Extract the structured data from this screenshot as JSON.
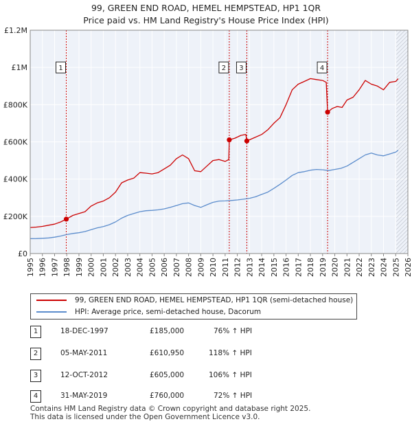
{
  "title_line1": "99, GREEN END ROAD, HEMEL HEMPSTEAD, HP1 1QR",
  "title_line2": "Price paid vs. HM Land Registry's House Price Index (HPI)",
  "legend": {
    "property": "99, GREEN END ROAD, HEMEL HEMPSTEAD, HP1 1QR (semi-detached house)",
    "hpi": "HPI: Average price, semi-detached house, Dacorum"
  },
  "colors": {
    "property": "#cc0000",
    "hpi": "#5b8ccc",
    "grid": "#dde3ee",
    "plot_bg": "#eef2f9",
    "shade": "#e6ecf6",
    "hatch": "#c9ccd4"
  },
  "sales": [
    {
      "num": "1",
      "date": "18-DEC-1997",
      "price": "£185,000",
      "hpi": "76% ↑ HPI"
    },
    {
      "num": "2",
      "date": "05-MAY-2011",
      "price": "£610,950",
      "hpi": "118% ↑ HPI"
    },
    {
      "num": "3",
      "date": "12-OCT-2012",
      "price": "£605,000",
      "hpi": "106% ↑ HPI"
    },
    {
      "num": "4",
      "date": "31-MAY-2019",
      "price": "£760,000",
      "hpi": "72% ↑ HPI"
    }
  ],
  "footer_line1": "Contains HM Land Registry data © Crown copyright and database right 2025.",
  "footer_line2": "This data is licensed under the Open Government Licence v3.0.",
  "chart_data": {
    "type": "line",
    "title": "Price paid vs. HM Land Registry's House Price Index (HPI)",
    "xlim": [
      1995,
      2026
    ],
    "ylim": [
      0,
      1200000
    ],
    "x_ticks": [
      1995,
      1996,
      1997,
      1998,
      1999,
      2000,
      2001,
      2002,
      2003,
      2004,
      2005,
      2006,
      2007,
      2008,
      2009,
      2010,
      2011,
      2012,
      2013,
      2014,
      2015,
      2016,
      2017,
      2018,
      2019,
      2020,
      2021,
      2022,
      2023,
      2024,
      2025,
      2026
    ],
    "y_ticks": [
      0,
      200000,
      400000,
      600000,
      800000,
      1000000,
      1200000
    ],
    "y_tick_labels": [
      "£0",
      "£200K",
      "£400K",
      "£600K",
      "£800K",
      "£1M",
      "£1.2M"
    ],
    "hatched_from": 2025.05,
    "sale_markers": [
      {
        "label": "1",
        "x": 1997.96,
        "y": 185000
      },
      {
        "label": "2",
        "x": 2011.34,
        "y": 610950
      },
      {
        "label": "3",
        "x": 2012.78,
        "y": 605000
      },
      {
        "label": "4",
        "x": 2019.41,
        "y": 760000
      }
    ],
    "series": [
      {
        "name": "99, GREEN END ROAD, HEMEL HEMPSTEAD, HP1 1QR (semi-detached house)",
        "x": [
          1995,
          1995.5,
          1996,
          1996.5,
          1997,
          1997.5,
          1997.96,
          1998.5,
          1999,
          1999.5,
          2000,
          2000.5,
          2001,
          2001.5,
          2002,
          2002.5,
          2003,
          2003.5,
          2004,
          2004.5,
          2005,
          2005.5,
          2006,
          2006.5,
          2007,
          2007.5,
          2008,
          2008.5,
          2009,
          2009.5,
          2010,
          2010.5,
          2011,
          2011.3,
          2011.34,
          2011.8,
          2012.3,
          2012.7,
          2012.78,
          2013.3,
          2014,
          2014.5,
          2015,
          2015.5,
          2016,
          2016.5,
          2017,
          2017.5,
          2018,
          2018.5,
          2019,
          2019.3,
          2019.41,
          2019.8,
          2020.2,
          2020.6,
          2021,
          2021.5,
          2022,
          2022.5,
          2023,
          2023.5,
          2024,
          2024.5,
          2025,
          2025.2
        ],
        "values": [
          140000,
          142000,
          146000,
          152000,
          158000,
          170000,
          185000,
          205000,
          215000,
          225000,
          255000,
          272000,
          282000,
          300000,
          330000,
          380000,
          395000,
          405000,
          435000,
          432000,
          428000,
          435000,
          455000,
          475000,
          510000,
          530000,
          510000,
          445000,
          440000,
          470000,
          500000,
          505000,
          495000,
          505000,
          610950,
          620000,
          635000,
          640000,
          605000,
          620000,
          640000,
          665000,
          700000,
          730000,
          800000,
          880000,
          910000,
          925000,
          940000,
          935000,
          930000,
          920000,
          760000,
          780000,
          790000,
          785000,
          825000,
          840000,
          880000,
          930000,
          910000,
          900000,
          880000,
          920000,
          925000,
          940000
        ]
      },
      {
        "name": "HPI: Average price, semi-detached house, Dacorum",
        "x": [
          1995,
          1995.5,
          1996,
          1996.5,
          1997,
          1997.5,
          1998,
          1998.5,
          1999,
          1999.5,
          2000,
          2000.5,
          2001,
          2001.5,
          2002,
          2002.5,
          2003,
          2003.5,
          2004,
          2004.5,
          2005,
          2005.5,
          2006,
          2006.5,
          2007,
          2007.5,
          2008,
          2008.5,
          2009,
          2009.5,
          2010,
          2010.5,
          2011,
          2011.5,
          2012,
          2012.5,
          2013,
          2013.5,
          2014,
          2014.5,
          2015,
          2015.5,
          2016,
          2016.5,
          2017,
          2017.5,
          2018,
          2018.5,
          2019,
          2019.5,
          2020,
          2020.5,
          2021,
          2021.5,
          2022,
          2022.5,
          2023,
          2023.5,
          2024,
          2024.5,
          2025,
          2025.2
        ],
        "values": [
          80000,
          80500,
          82000,
          84000,
          88000,
          94000,
          102000,
          108000,
          112000,
          118000,
          128000,
          138000,
          145000,
          155000,
          170000,
          190000,
          205000,
          215000,
          225000,
          230000,
          232000,
          235000,
          240000,
          248000,
          258000,
          268000,
          272000,
          258000,
          248000,
          262000,
          275000,
          282000,
          283000,
          285000,
          288000,
          292000,
          297000,
          305000,
          318000,
          330000,
          350000,
          372000,
          395000,
          420000,
          435000,
          440000,
          448000,
          452000,
          450000,
          446000,
          452000,
          458000,
          470000,
          490000,
          510000,
          530000,
          540000,
          530000,
          525000,
          535000,
          545000,
          555000
        ]
      }
    ]
  }
}
